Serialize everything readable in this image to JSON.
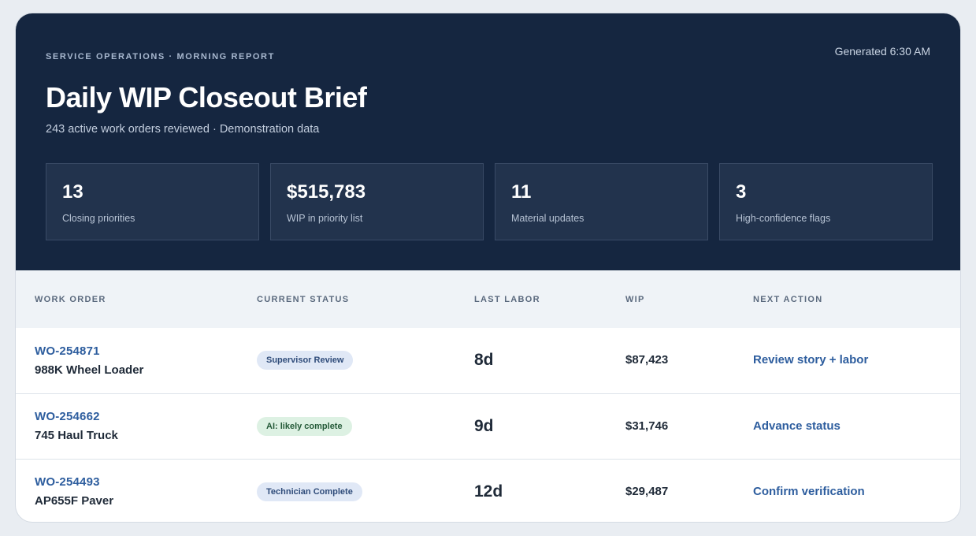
{
  "header": {
    "eyebrow": "SERVICE OPERATIONS · MORNING REPORT",
    "generated": "Generated 6:30 AM",
    "title": "Daily WIP Closeout Brief",
    "subtitle": "243 active work orders reviewed · Demonstration data"
  },
  "stats": [
    {
      "value": "13",
      "label": "Closing priorities"
    },
    {
      "value": "$515,783",
      "label": "WIP in priority list"
    },
    {
      "value": "11",
      "label": "Material updates"
    },
    {
      "value": "3",
      "label": "High-confidence flags"
    }
  ],
  "table": {
    "columns": [
      "WORK ORDER",
      "CURRENT STATUS",
      "LAST LABOR",
      "WIP",
      "NEXT ACTION"
    ],
    "rows": [
      {
        "id": "WO-254871",
        "asset": "988K Wheel Loader",
        "status": "Supervisor Review",
        "status_tone": "blue",
        "last_labor": "8d",
        "wip": "$87,423",
        "action": "Review story + labor"
      },
      {
        "id": "WO-254662",
        "asset": "745 Haul Truck",
        "status": "AI: likely complete",
        "status_tone": "green",
        "last_labor": "9d",
        "wip": "$31,746",
        "action": "Advance status"
      },
      {
        "id": "WO-254493",
        "asset": "AP655F Paver",
        "status": "Technician Complete",
        "status_tone": "blue",
        "last_labor": "12d",
        "wip": "$29,487",
        "action": "Confirm verification"
      }
    ]
  }
}
